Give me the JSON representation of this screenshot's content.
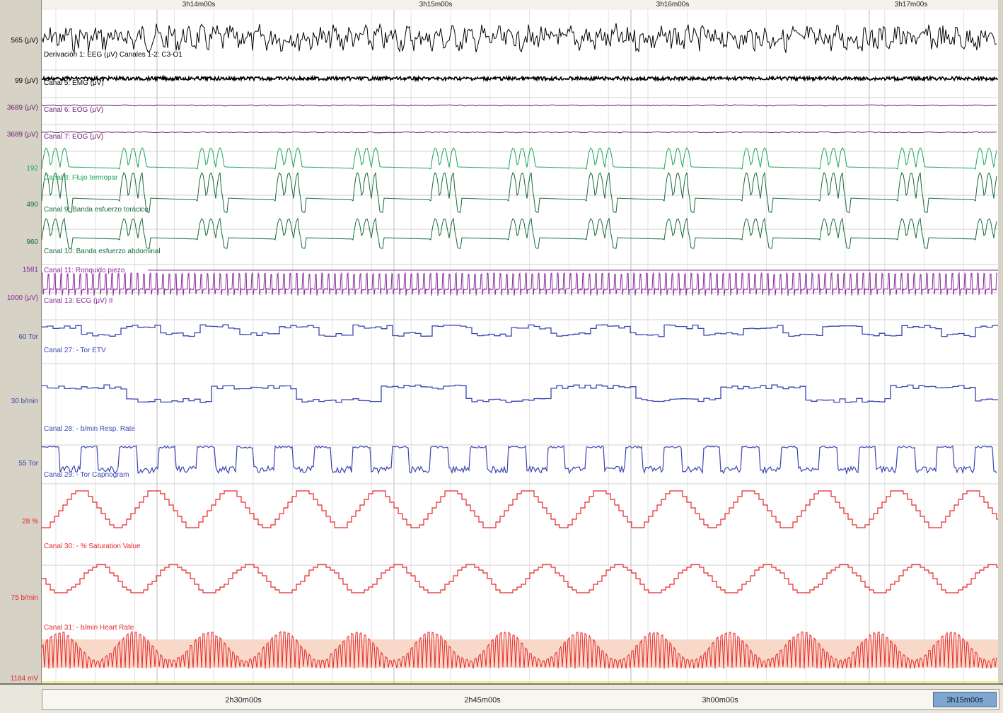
{
  "time_ruler": {
    "ticks": [
      {
        "label": "3h14m00s"
      },
      {
        "label": "3h15m00s"
      },
      {
        "label": "3h16m00s"
      },
      {
        "label": "3h17m00s"
      }
    ]
  },
  "channels": [
    {
      "label": "Derivación 1: EEG (μV) Canales 1-2: C3-O1",
      "scale": "565 (μV)",
      "color": "#000000"
    },
    {
      "label": "Canal 5: EMG (μV)",
      "scale": "99 (μV)",
      "color": "#000000"
    },
    {
      "label": "Canal 6: EOG (μV)",
      "scale": "3689 (μV)",
      "color": "#6a1a6a"
    },
    {
      "label": "Canal 7: EOG (μV)",
      "scale": "3689 (μV)",
      "color": "#6a1a6a"
    },
    {
      "label": "Canal 8: Flujo termopar",
      "scale": "192",
      "color": "#1aa65a"
    },
    {
      "label": "Canal 9: Banda esfuerzo torácico",
      "scale": "490",
      "color": "#156b3a"
    },
    {
      "label": "Canal 10: Banda esfuerzo abdominal",
      "scale": "960",
      "color": "#156b3a"
    },
    {
      "label": "Canal 11: Ronquido piezo",
      "scale": "1581",
      "color": "#8a2a9a"
    },
    {
      "label": "Canal 13: ECG (μV) II",
      "scale": "1000 (μV)",
      "color": "#8a2a9a"
    },
    {
      "label": "Canal 27: - Tor ETV",
      "scale": "60 Tor",
      "color": "#3a46b0"
    },
    {
      "label": "Canal 28: - b/min Resp. Rate",
      "scale": "30 b/min",
      "color": "#3a46b0"
    },
    {
      "label": "Canal 29: - Tor Capnogram",
      "scale": "55 Tor",
      "color": "#3a46b0"
    },
    {
      "label": "Canal 30: - % Saturation Value",
      "scale": "28 %",
      "color": "#e8262a"
    },
    {
      "label": "Canal 31: - b/min Heart Rate",
      "scale": "75 b/min",
      "color": "#e8262a"
    },
    {
      "label": "",
      "scale": "1184 mV",
      "color": "#e8262a"
    }
  ],
  "overview": {
    "ticks": [
      {
        "label": "2h30m00s"
      },
      {
        "label": "2h45m00s"
      },
      {
        "label": "3h00m00s"
      }
    ],
    "current": "3h15m00s"
  }
}
